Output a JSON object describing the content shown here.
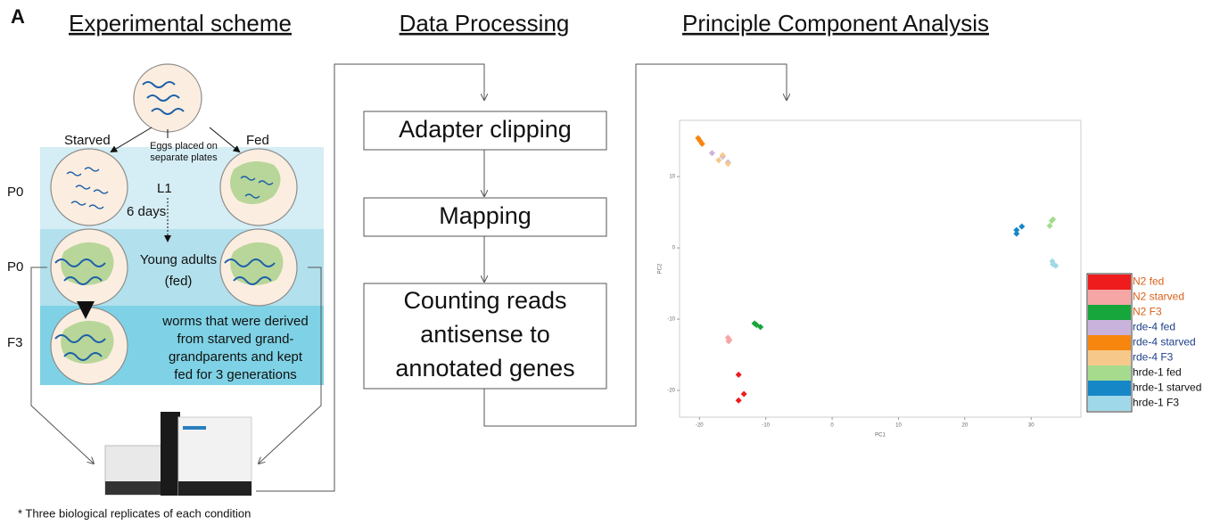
{
  "panel_label": "A",
  "headings": {
    "scheme": "Experimental scheme",
    "processing": "Data Processing",
    "pca": "Principle Component Analysis"
  },
  "scheme": {
    "starved": "Starved",
    "fed": "Fed",
    "eggs": [
      "Eggs placed on",
      "separate plates"
    ],
    "stage_labels": [
      "P0",
      "P0",
      "F3"
    ],
    "l1": "L1",
    "duration": "6 days",
    "young_adults": [
      "Young adults",
      "(fed)"
    ],
    "f3_description": [
      "worms that were derived",
      "from starved grand-",
      "grandparents and kept",
      "fed for 3 generations"
    ],
    "footnote": "* Three biological replicates of each condition"
  },
  "processing": {
    "steps": [
      [
        "Adapter clipping"
      ],
      [
        "Mapping"
      ],
      [
        "Counting reads",
        "antisense to",
        "annotated genes"
      ]
    ]
  },
  "chart_data": {
    "type": "scatter",
    "x_label": "PC1",
    "y_label": "PC2",
    "xlim": [
      -23,
      37.5
    ],
    "ylim": [
      -23.75,
      17.9
    ],
    "xticks": [
      -20,
      -10,
      0,
      10,
      20,
      30
    ],
    "yticks": [
      -20,
      -10,
      0,
      10
    ],
    "series": [
      {
        "name": "N2 fed",
        "color": "#ee1c1c",
        "text_color": "#d8601a",
        "x": [
          -14.1,
          -13.3,
          -14.1
        ],
        "y": [
          -17.8,
          -20.5,
          -21.4
        ]
      },
      {
        "name": "N2 starved",
        "color": "#f7a6a6",
        "text_color": "#d8601a",
        "x": [
          -15.7,
          -15.5,
          -15.6
        ],
        "y": [
          -12.6,
          -12.9,
          -13.1
        ]
      },
      {
        "name": "N2 F3",
        "color": "#17a63c",
        "text_color": "#d8601a",
        "x": [
          -11.7,
          -11.4,
          -10.8
        ],
        "y": [
          -10.6,
          -10.8,
          -11.1
        ]
      },
      {
        "name": "rde-4 fed",
        "color": "#c9b3dc",
        "text_color": "#1d3f8a",
        "x": [
          -18.1,
          -16.5,
          -15.7
        ],
        "y": [
          13.3,
          12.8,
          12
        ]
      },
      {
        "name": "rde-4 starved",
        "color": "#f7860f",
        "text_color": "#1d3f8a",
        "x": [
          -20.2,
          -19.9,
          -19.6
        ],
        "y": [
          15.4,
          15,
          14.6
        ]
      },
      {
        "name": "rde-4 F3",
        "color": "#f6c98a",
        "text_color": "#1d3f8a",
        "x": [
          -17.1,
          -16.5,
          -15.7
        ],
        "y": [
          12.3,
          13,
          11.8
        ]
      },
      {
        "name": "hrde-1 fed",
        "color": "#a6db8e",
        "text_color": "#111111",
        "x": [
          32.8,
          33.1,
          33.3
        ],
        "y": [
          3.1,
          3.8,
          4
        ]
      },
      {
        "name": "hrde-1 starved",
        "color": "#1587c7",
        "text_color": "#111111",
        "x": [
          27.8,
          27.8,
          28.6
        ],
        "y": [
          2.5,
          2,
          3
        ]
      },
      {
        "name": "hrde-1 F3",
        "color": "#9fd8e8",
        "text_color": "#111111",
        "x": [
          33.2,
          33.7,
          33.3
        ],
        "y": [
          -1.9,
          -2.5,
          -2.3
        ]
      }
    ]
  }
}
